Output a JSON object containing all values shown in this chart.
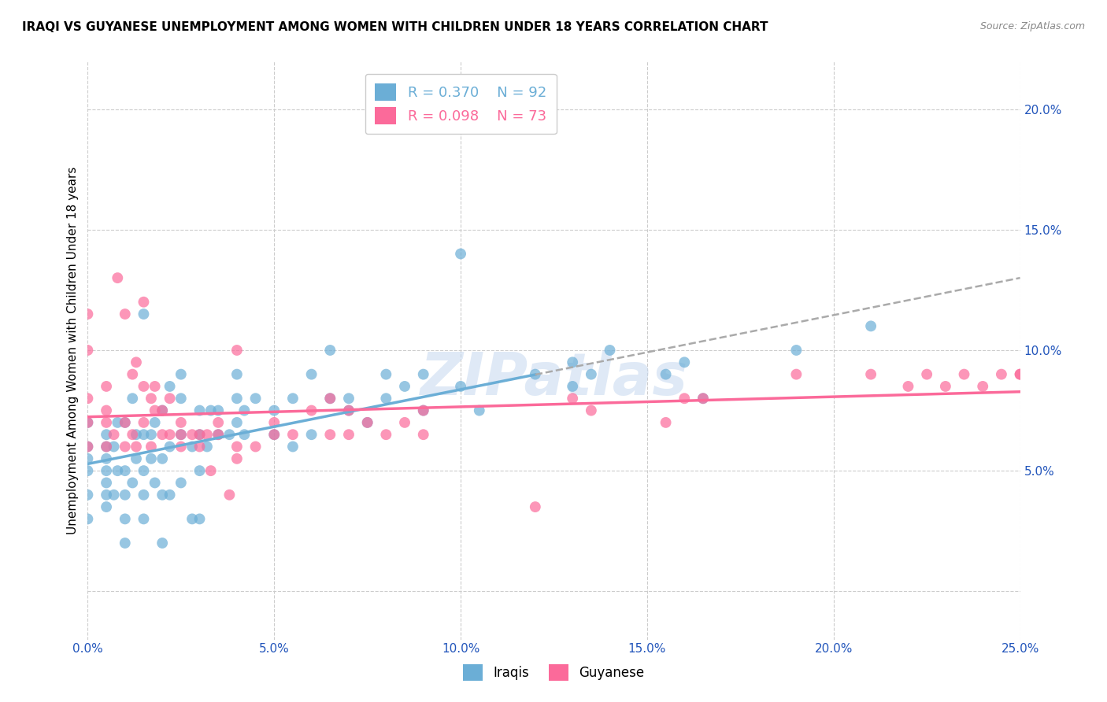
{
  "title": "IRAQI VS GUYANESE UNEMPLOYMENT AMONG WOMEN WITH CHILDREN UNDER 18 YEARS CORRELATION CHART",
  "source": "Source: ZipAtlas.com",
  "ylabel": "Unemployment Among Women with Children Under 18 years",
  "xlim": [
    0.0,
    0.25
  ],
  "ylim": [
    -0.02,
    0.22
  ],
  "iraqis_color": "#6baed6",
  "guyanese_color": "#fb6a9a",
  "iraqis_R": 0.37,
  "iraqis_N": 92,
  "guyanese_R": 0.098,
  "guyanese_N": 73,
  "iraqis_x": [
    0.0,
    0.0,
    0.0,
    0.0,
    0.0,
    0.0,
    0.005,
    0.005,
    0.005,
    0.005,
    0.005,
    0.005,
    0.005,
    0.007,
    0.007,
    0.008,
    0.008,
    0.01,
    0.01,
    0.01,
    0.01,
    0.01,
    0.012,
    0.012,
    0.013,
    0.013,
    0.015,
    0.015,
    0.015,
    0.015,
    0.015,
    0.017,
    0.017,
    0.018,
    0.018,
    0.02,
    0.02,
    0.02,
    0.02,
    0.022,
    0.022,
    0.022,
    0.025,
    0.025,
    0.025,
    0.025,
    0.028,
    0.028,
    0.03,
    0.03,
    0.03,
    0.03,
    0.032,
    0.033,
    0.035,
    0.035,
    0.038,
    0.04,
    0.04,
    0.04,
    0.042,
    0.042,
    0.045,
    0.05,
    0.05,
    0.055,
    0.055,
    0.06,
    0.06,
    0.065,
    0.065,
    0.07,
    0.07,
    0.075,
    0.08,
    0.08,
    0.085,
    0.09,
    0.09,
    0.1,
    0.1,
    0.105,
    0.12,
    0.13,
    0.13,
    0.135,
    0.14,
    0.155,
    0.16,
    0.165,
    0.19,
    0.21
  ],
  "iraqis_y": [
    0.03,
    0.04,
    0.05,
    0.055,
    0.06,
    0.07,
    0.035,
    0.04,
    0.045,
    0.05,
    0.055,
    0.06,
    0.065,
    0.04,
    0.06,
    0.05,
    0.07,
    0.02,
    0.03,
    0.04,
    0.05,
    0.07,
    0.045,
    0.08,
    0.055,
    0.065,
    0.03,
    0.04,
    0.05,
    0.065,
    0.115,
    0.055,
    0.065,
    0.045,
    0.07,
    0.02,
    0.04,
    0.055,
    0.075,
    0.04,
    0.06,
    0.085,
    0.045,
    0.065,
    0.08,
    0.09,
    0.03,
    0.06,
    0.03,
    0.05,
    0.065,
    0.075,
    0.06,
    0.075,
    0.065,
    0.075,
    0.065,
    0.07,
    0.08,
    0.09,
    0.065,
    0.075,
    0.08,
    0.065,
    0.075,
    0.06,
    0.08,
    0.065,
    0.09,
    0.08,
    0.1,
    0.075,
    0.08,
    0.07,
    0.09,
    0.08,
    0.085,
    0.075,
    0.09,
    0.085,
    0.14,
    0.075,
    0.09,
    0.095,
    0.085,
    0.09,
    0.1,
    0.09,
    0.095,
    0.08,
    0.1,
    0.11
  ],
  "guyanese_x": [
    0.0,
    0.0,
    0.0,
    0.0,
    0.0,
    0.005,
    0.005,
    0.005,
    0.005,
    0.007,
    0.008,
    0.01,
    0.01,
    0.01,
    0.012,
    0.012,
    0.013,
    0.013,
    0.015,
    0.015,
    0.015,
    0.017,
    0.017,
    0.018,
    0.018,
    0.02,
    0.02,
    0.022,
    0.022,
    0.025,
    0.025,
    0.025,
    0.028,
    0.03,
    0.03,
    0.032,
    0.033,
    0.035,
    0.035,
    0.038,
    0.04,
    0.04,
    0.04,
    0.045,
    0.05,
    0.05,
    0.055,
    0.06,
    0.065,
    0.065,
    0.07,
    0.07,
    0.075,
    0.08,
    0.085,
    0.09,
    0.09,
    0.12,
    0.13,
    0.135,
    0.155,
    0.16,
    0.165,
    0.19,
    0.21,
    0.22,
    0.225,
    0.23,
    0.235,
    0.24,
    0.245,
    0.25,
    0.25
  ],
  "guyanese_y": [
    0.06,
    0.07,
    0.08,
    0.1,
    0.115,
    0.06,
    0.07,
    0.075,
    0.085,
    0.065,
    0.13,
    0.06,
    0.07,
    0.115,
    0.065,
    0.09,
    0.06,
    0.095,
    0.07,
    0.085,
    0.12,
    0.06,
    0.08,
    0.075,
    0.085,
    0.065,
    0.075,
    0.08,
    0.065,
    0.07,
    0.06,
    0.065,
    0.065,
    0.06,
    0.065,
    0.065,
    0.05,
    0.07,
    0.065,
    0.04,
    0.06,
    0.055,
    0.1,
    0.06,
    0.07,
    0.065,
    0.065,
    0.075,
    0.065,
    0.08,
    0.065,
    0.075,
    0.07,
    0.065,
    0.07,
    0.065,
    0.075,
    0.035,
    0.08,
    0.075,
    0.07,
    0.08,
    0.08,
    0.09,
    0.09,
    0.085,
    0.09,
    0.085,
    0.09,
    0.085,
    0.09,
    0.09,
    0.09
  ]
}
